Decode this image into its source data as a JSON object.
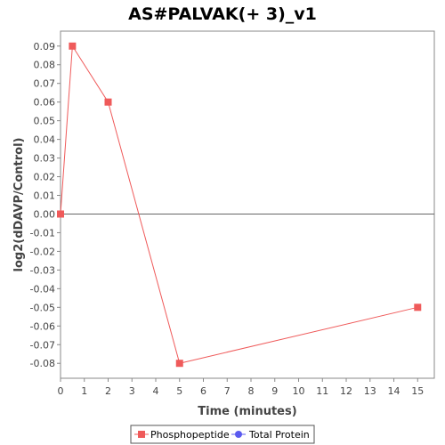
{
  "chart_data": {
    "type": "line",
    "title": "AS#PALVAK(+ 3)_v1",
    "xlabel": "Time (minutes)",
    "ylabel": "log2(dDAVP/Control)",
    "x_ticks": [
      "0",
      "1",
      "2",
      "3",
      "4",
      "5",
      "6",
      "7",
      "8",
      "9",
      "10",
      "11",
      "12",
      "13",
      "14",
      "15"
    ],
    "y_ticks": [
      "0.09",
      "0.08",
      "0.07",
      "0.06",
      "0.05",
      "0.04",
      "0.03",
      "0.02",
      "0.01",
      "0.00",
      "-0.01",
      "-0.02",
      "-0.03",
      "-0.04",
      "-0.05",
      "-0.06",
      "-0.07",
      "-0.08"
    ],
    "xlim": [
      0,
      15.7
    ],
    "ylim": [
      -0.088,
      0.098
    ],
    "x_categories": [
      0,
      0.5,
      2,
      5,
      15
    ],
    "series": [
      {
        "name": "Phosphopeptide",
        "color": "#ef5a5a",
        "marker": "square",
        "points": [
          [
            0,
            0.0
          ],
          [
            0.5,
            0.09
          ],
          [
            2,
            0.06
          ],
          [
            5,
            -0.08
          ],
          [
            15,
            -0.05
          ]
        ]
      },
      {
        "name": "Total Protein",
        "color": "#5a5aef",
        "marker": "circle",
        "points": []
      }
    ],
    "zero_line": true,
    "legend_position": "bottom"
  }
}
